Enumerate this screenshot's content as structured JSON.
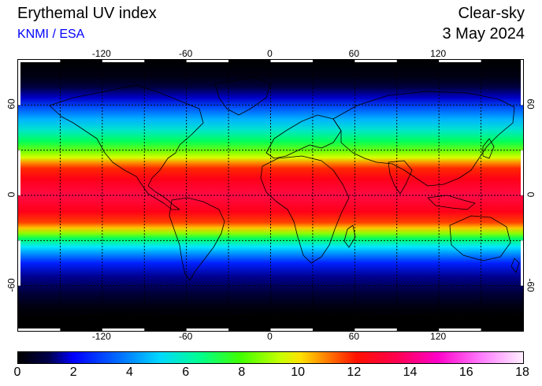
{
  "header": {
    "title": "Erythemal UV index",
    "subtitle": "KNMI / ESA",
    "mode": "Clear-sky",
    "date": "3 May 2024"
  },
  "map": {
    "lon_range": [
      -180,
      180
    ],
    "lat_range": [
      -90,
      90
    ],
    "lon_ticks": [
      {
        "value": -120,
        "label": "-120"
      },
      {
        "value": -60,
        "label": "-60"
      },
      {
        "value": 0,
        "label": "0"
      },
      {
        "value": 60,
        "label": "60"
      },
      {
        "value": 120,
        "label": "120"
      }
    ],
    "lat_ticks": [
      {
        "value": 60,
        "label": "60"
      },
      {
        "value": 0,
        "label": "0"
      },
      {
        "value": -60,
        "label": "-60"
      }
    ],
    "grid_lon": [
      -150,
      -120,
      -90,
      -60,
      -30,
      0,
      30,
      60,
      90,
      120,
      150
    ],
    "grid_lat": [
      60,
      30,
      0,
      -30,
      -60
    ]
  },
  "colorbar": {
    "min": 0,
    "max": 18,
    "labels": [
      "0",
      "2",
      "4",
      "6",
      "8",
      "10",
      "12",
      "14",
      "16",
      "18"
    ],
    "values": [
      0,
      2,
      4,
      6,
      8,
      10,
      12,
      14,
      16,
      18
    ]
  }
}
